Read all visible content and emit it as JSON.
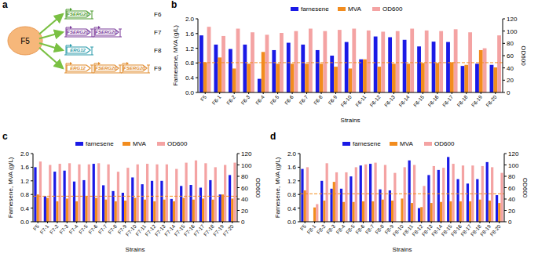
{
  "diagram": {
    "label": "a",
    "source": "F5",
    "constructs": [
      {
        "name": "F6",
        "genes": [
          "FSERG20"
        ],
        "color": "#4a9a2c"
      },
      {
        "name": "F7",
        "genes": [
          "FSERG20",
          "FSERG20"
        ],
        "color": "#7a3a9a"
      },
      {
        "name": "F8",
        "genes": [
          "ERG12"
        ],
        "color": "#2a9aaa"
      },
      {
        "name": "F9",
        "genes": [
          "ERG12",
          "FSERG20",
          "FSERG20"
        ],
        "color": "#e08a2a"
      }
    ]
  },
  "chart_data": [
    {
      "type": "bar",
      "title": "b",
      "x_label": "Strains",
      "y_label": "Farnesene, MVA (g/L)",
      "y2_label": "OD600",
      "categories": [
        "F5",
        "F6-1",
        "F6-2",
        "F6-3",
        "F6-4",
        "F6-5",
        "F6-6",
        "F6-7",
        "F6-8",
        "F6-9",
        "F6-10",
        "F6-11",
        "F6-12",
        "F6-13",
        "F6-14",
        "F6-15",
        "F6-16",
        "F6-17",
        "F6-18",
        "F6-19",
        "F6-20"
      ],
      "series": [
        {
          "name": "farnesene",
          "color": "#1a1ae6",
          "values": [
            1.55,
            1.3,
            1.18,
            1.3,
            0.37,
            1.15,
            1.35,
            1.3,
            1.15,
            1.0,
            1.37,
            0.9,
            1.52,
            1.5,
            1.43,
            1.25,
            1.38,
            1.37,
            0.72,
            0.78,
            0.75
          ]
        },
        {
          "name": "MVA",
          "color": "#f28c1e",
          "values": [
            0.82,
            0.95,
            0.65,
            0.78,
            1.1,
            0.78,
            0.78,
            0.78,
            0.78,
            0.7,
            0.65,
            0.9,
            0.7,
            0.78,
            0.78,
            0.8,
            0.8,
            0.82,
            0.75,
            1.15,
            0.68
          ]
        },
        {
          "name": "OD600",
          "color": "#f4a3a3",
          "axis": "y2",
          "values": [
            107,
            92,
            104,
            98,
            94,
            97,
            100,
            104,
            100,
            102,
            104,
            101,
            99,
            100,
            104,
            101,
            100,
            103,
            98,
            72,
            93
          ]
        }
      ],
      "reference_line": 0.81,
      "ylim": [
        0,
        2.0
      ],
      "yticks": [
        {
          "value": 0,
          "label": "0.0"
        },
        {
          "value": 0.4,
          "label": "0.4"
        },
        {
          "value": 0.8,
          "label": "0.8"
        },
        {
          "value": 1.2,
          "label": "1.2"
        },
        {
          "value": 1.6,
          "label": "1.6"
        },
        {
          "value": 2.0,
          "label": "2.0"
        }
      ],
      "y2lim": [
        0,
        120
      ],
      "y2ticks": [
        0,
        20,
        40,
        60,
        80,
        100,
        120
      ],
      "legend": "top"
    },
    {
      "type": "bar",
      "title": "c",
      "x_label": "Strains",
      "y_label": "Farnesene, MVA (g/L)",
      "y2_label": "OD600",
      "categories": [
        "F5",
        "F7-1",
        "F7-2",
        "F7-3",
        "F7-4",
        "F7-5",
        "F7-6",
        "F7-7",
        "F7-8",
        "F7-9",
        "F7-10",
        "F7-11",
        "F7-12",
        "F7-13",
        "F7-14",
        "F7-15",
        "F7-16",
        "F7-17",
        "F7-18",
        "F7-19",
        "F7-20"
      ],
      "series": [
        {
          "name": "farnesene",
          "color": "#1a1ae6",
          "values": [
            1.6,
            0.75,
            1.47,
            1.5,
            1.18,
            1.22,
            1.7,
            1.07,
            0.9,
            0.85,
            1.3,
            1.1,
            1.2,
            1.2,
            0.67,
            1.05,
            1.08,
            1.0,
            1.22,
            0.8,
            1.37
          ]
        },
        {
          "name": "MVA",
          "color": "#f28c1e",
          "values": [
            0.8,
            0.7,
            0.6,
            0.68,
            0.6,
            0.75,
            0.7,
            0.65,
            0.6,
            0.62,
            0.7,
            0.65,
            0.6,
            0.65,
            0.6,
            0.7,
            0.65,
            0.68,
            0.65,
            0.8,
            0.68
          ]
        },
        {
          "name": "OD600",
          "color": "#f4a3a3",
          "axis": "y2",
          "values": [
            106,
            100,
            102,
            103,
            101,
            101,
            103,
            101,
            88,
            95,
            101,
            102,
            101,
            101,
            93,
            104,
            108,
            103,
            96,
            100,
            104
          ]
        }
      ],
      "reference_line": 0.75,
      "ylim": [
        0,
        2.0
      ],
      "yticks": [
        {
          "value": 0,
          "label": "0.0"
        },
        {
          "value": 0.4,
          "label": "0.4"
        },
        {
          "value": 0.8,
          "label": "0.8"
        },
        {
          "value": 1.2,
          "label": "1.2"
        },
        {
          "value": 1.6,
          "label": "1.6"
        },
        {
          "value": 2.0,
          "label": "2.0"
        }
      ],
      "y2lim": [
        0,
        120
      ],
      "y2ticks": [
        0,
        20,
        40,
        60,
        80,
        100,
        120
      ],
      "legend": "top"
    },
    {
      "type": "bar",
      "title": "d",
      "x_label": "Strains",
      "y_label": "Farnesene, MVA (g/L)",
      "y2_label": "OD600",
      "categories": [
        "F5",
        "F8-1",
        "F8-2",
        "F8-3",
        "F8-4",
        "F8-5",
        "F8-6",
        "F8-7",
        "F8-8",
        "F8-9",
        "F8-10",
        "F8-11",
        "F8-12",
        "F8-13",
        "F8-14",
        "F8-15",
        "F8-16",
        "F8-17",
        "F8-18",
        "F8-19",
        "F8-20"
      ],
      "series": [
        {
          "name": "farnesene",
          "color": "#1a1ae6",
          "values": [
            1.55,
            0.0,
            1.2,
            0.97,
            0.97,
            1.33,
            1.65,
            1.7,
            0.95,
            0.92,
            0.0,
            1.8,
            0.4,
            1.37,
            1.52,
            1.9,
            1.25,
            1.12,
            1.25,
            1.75,
            0.78
          ]
        },
        {
          "name": "MVA",
          "color": "#f28c1e",
          "values": [
            0.92,
            0.42,
            0.62,
            1.17,
            0.58,
            0.58,
            0.6,
            0.6,
            0.65,
            0.62,
            0.68,
            0.55,
            0.43,
            0.55,
            0.58,
            0.6,
            0.6,
            0.6,
            0.65,
            0.62,
            0.55
          ]
        },
        {
          "name": "OD600",
          "color": "#f4a3a3",
          "axis": "y2",
          "values": [
            96,
            31,
            103,
            87,
            87,
            96,
            101,
            104,
            100,
            86,
            96,
            100,
            63,
            98,
            95,
            102,
            99,
            99,
            98,
            96,
            86
          ]
        }
      ],
      "reference_line": 0.82,
      "ylim": [
        0,
        2.0
      ],
      "yticks": [
        {
          "value": 0,
          "label": "0.0"
        },
        {
          "value": 0.4,
          "label": "0.4"
        },
        {
          "value": 0.8,
          "label": "0.8"
        },
        {
          "value": 1.2,
          "label": "1.2"
        },
        {
          "value": 1.6,
          "label": "1.6"
        },
        {
          "value": 2.0,
          "label": "2.0"
        }
      ],
      "y2lim": [
        0,
        120
      ],
      "y2ticks": [
        0,
        20,
        40,
        60,
        80,
        100,
        120
      ],
      "legend": "top"
    }
  ]
}
